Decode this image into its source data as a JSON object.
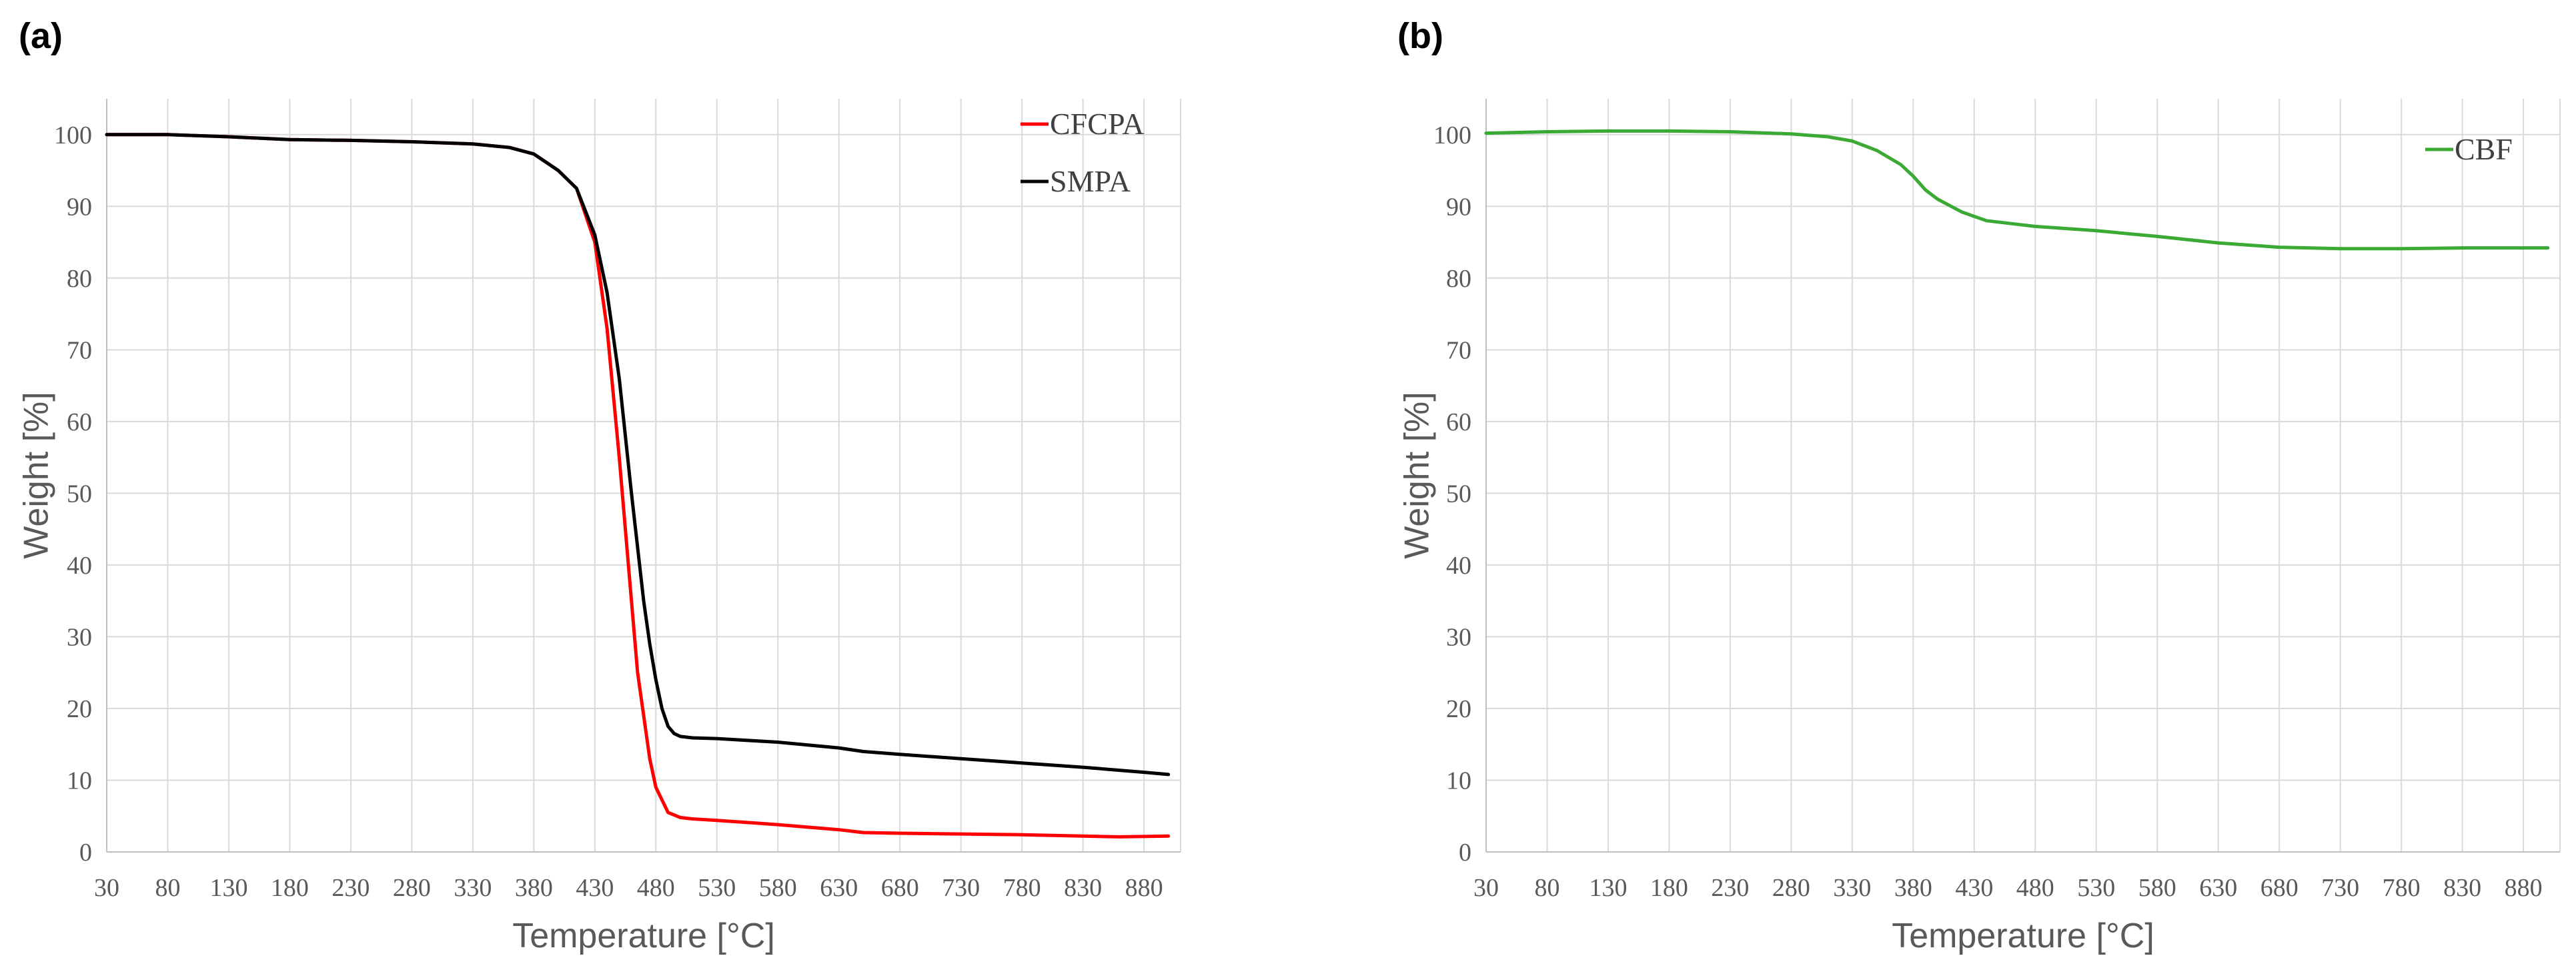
{
  "chart_data": [
    {
      "panel": "(a)",
      "type": "line",
      "xlabel": "Temperature [°C]",
      "ylabel": "Weight  [%]",
      "xlim": [
        30,
        910
      ],
      "ylim": [
        0,
        105
      ],
      "xticks": [
        30,
        80,
        130,
        180,
        230,
        280,
        330,
        380,
        430,
        480,
        530,
        580,
        630,
        680,
        730,
        780,
        830,
        880
      ],
      "yticks": [
        0,
        10,
        20,
        30,
        40,
        50,
        60,
        70,
        80,
        90,
        100
      ],
      "grid": true,
      "legend_position": "top-right",
      "series": [
        {
          "name": "CFCPA",
          "color": "#ff0000",
          "x": [
            30,
            80,
            130,
            180,
            230,
            280,
            330,
            360,
            380,
            400,
            415,
            430,
            440,
            450,
            460,
            465,
            470,
            475,
            480,
            490,
            500,
            510,
            530,
            580,
            630,
            650,
            680,
            730,
            780,
            830,
            860,
            900
          ],
          "y": [
            100,
            100,
            99.7,
            99.3,
            99.2,
            99,
            98.7,
            98.2,
            97.3,
            95,
            92.5,
            85,
            73,
            55,
            35,
            25,
            19,
            13,
            9,
            5.5,
            4.8,
            4.6,
            4.4,
            3.8,
            3.1,
            2.7,
            2.6,
            2.5,
            2.4,
            2.2,
            2.1,
            2.2
          ]
        },
        {
          "name": "SMPA",
          "color": "#000000",
          "x": [
            30,
            80,
            130,
            180,
            230,
            280,
            330,
            360,
            380,
            400,
            415,
            430,
            440,
            450,
            460,
            470,
            475,
            480,
            485,
            490,
            495,
            500,
            510,
            530,
            580,
            630,
            650,
            680,
            730,
            780,
            830,
            880,
            900
          ],
          "y": [
            100,
            100,
            99.7,
            99.3,
            99.2,
            99,
            98.7,
            98.2,
            97.3,
            95,
            92.5,
            86,
            78,
            66,
            50,
            35,
            29,
            24,
            20,
            17.5,
            16.5,
            16.1,
            15.9,
            15.8,
            15.3,
            14.5,
            14,
            13.6,
            13,
            12.4,
            11.8,
            11.1,
            10.8
          ]
        }
      ]
    },
    {
      "panel": "(b)",
      "type": "line",
      "xlabel": "Temperature [°C]",
      "ylabel": "Weight  [%]",
      "xlim": [
        30,
        910
      ],
      "ylim": [
        0,
        105
      ],
      "xticks": [
        30,
        80,
        130,
        180,
        230,
        280,
        330,
        380,
        430,
        480,
        530,
        580,
        630,
        680,
        730,
        780,
        830,
        880
      ],
      "yticks": [
        0,
        10,
        20,
        30,
        40,
        50,
        60,
        70,
        80,
        90,
        100
      ],
      "grid": true,
      "legend_position": "top-right",
      "series": [
        {
          "name": "CBF",
          "color": "#3aaa35",
          "x": [
            30,
            80,
            130,
            180,
            230,
            280,
            310,
            330,
            350,
            370,
            380,
            390,
            400,
            420,
            440,
            480,
            530,
            580,
            630,
            680,
            730,
            780,
            830,
            880,
            900
          ],
          "y": [
            100.2,
            100.4,
            100.5,
            100.5,
            100.4,
            100.1,
            99.7,
            99.1,
            97.8,
            95.8,
            94.2,
            92.3,
            91,
            89.2,
            88,
            87.2,
            86.6,
            85.8,
            84.9,
            84.3,
            84.1,
            84.1,
            84.2,
            84.2,
            84.2
          ]
        }
      ]
    }
  ]
}
